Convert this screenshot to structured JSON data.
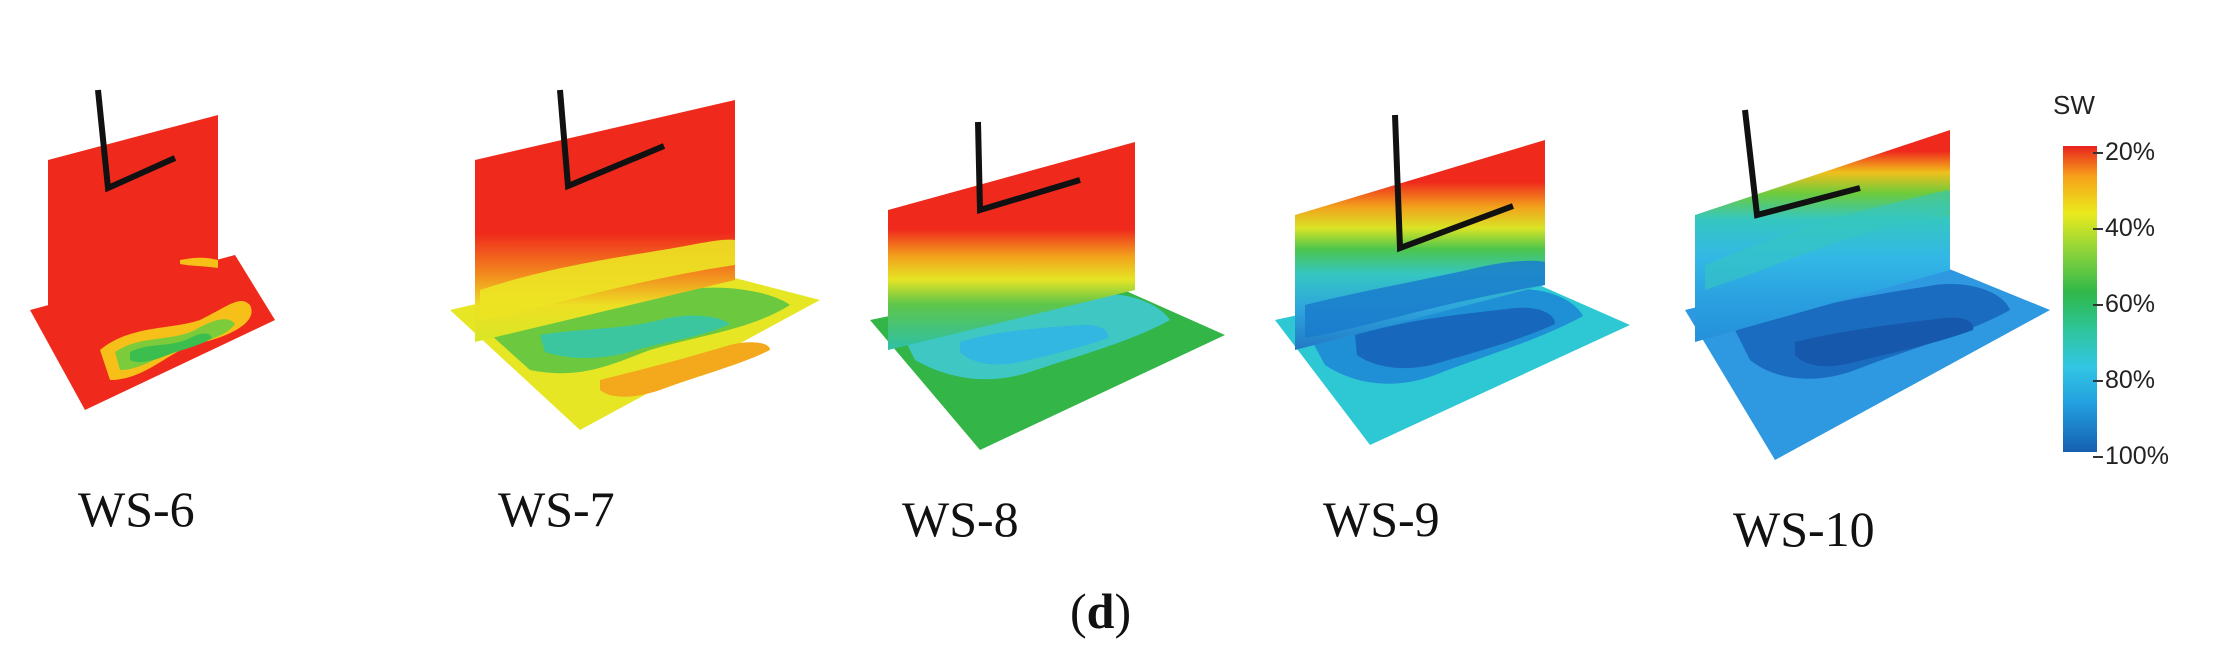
{
  "panels": [
    {
      "label": "WS-6"
    },
    {
      "label": "WS-7"
    },
    {
      "label": "WS-8"
    },
    {
      "label": "WS-9"
    },
    {
      "label": "WS-10"
    }
  ],
  "colorbar": {
    "title": "SW",
    "ticks": [
      "20%",
      "40%",
      "60%",
      "80%",
      "100%"
    ],
    "colors": [
      "#e8221e",
      "#e9ea1c",
      "#2fb84a",
      "#32c6e4",
      "#1560b0"
    ]
  },
  "caption": {
    "open": "(",
    "letter": "d",
    "close": ")"
  }
}
